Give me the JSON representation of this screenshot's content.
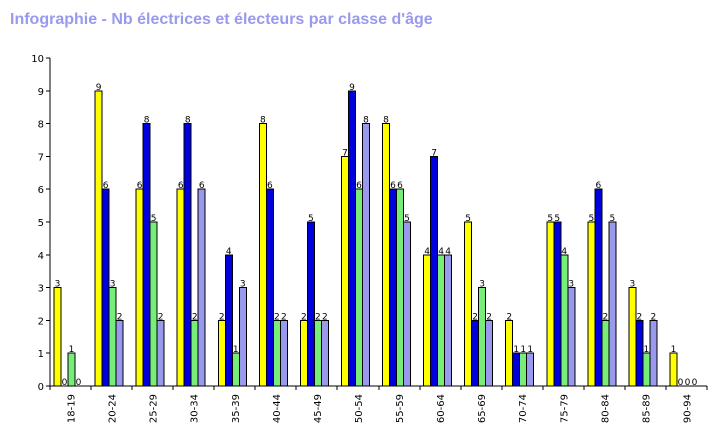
{
  "chart_data": {
    "type": "bar",
    "title": "Infographie - Nb électrices et électeurs par classe d'âge",
    "xlabel": "",
    "ylabel": "",
    "ylim": [
      0,
      10
    ],
    "yticks": [
      0,
      1,
      2,
      3,
      4,
      5,
      6,
      7,
      8,
      9,
      10
    ],
    "grid": false,
    "categories": [
      "18-19",
      "20-24",
      "25-29",
      "30-34",
      "35-39",
      "40-44",
      "45-49",
      "50-54",
      "55-59",
      "60-64",
      "65-69",
      "70-74",
      "75-79",
      "80-84",
      "85-89",
      "90-94"
    ],
    "series": [
      {
        "color": "#ffff00",
        "values": [
          3,
          9,
          6,
          6,
          2,
          8,
          2,
          7,
          8,
          4,
          5,
          2,
          5,
          5,
          3,
          1
        ]
      },
      {
        "color": "#0000dd",
        "values": [
          0,
          6,
          8,
          8,
          4,
          6,
          5,
          9,
          6,
          7,
          2,
          1,
          5,
          6,
          2,
          0
        ]
      },
      {
        "color": "#77ee77",
        "values": [
          1,
          3,
          5,
          2,
          1,
          2,
          2,
          6,
          6,
          4,
          3,
          1,
          4,
          2,
          1,
          0
        ]
      },
      {
        "color": "#9999ee",
        "values": [
          0,
          2,
          2,
          6,
          3,
          2,
          2,
          8,
          5,
          4,
          2,
          1,
          3,
          5,
          2,
          0
        ]
      }
    ]
  }
}
